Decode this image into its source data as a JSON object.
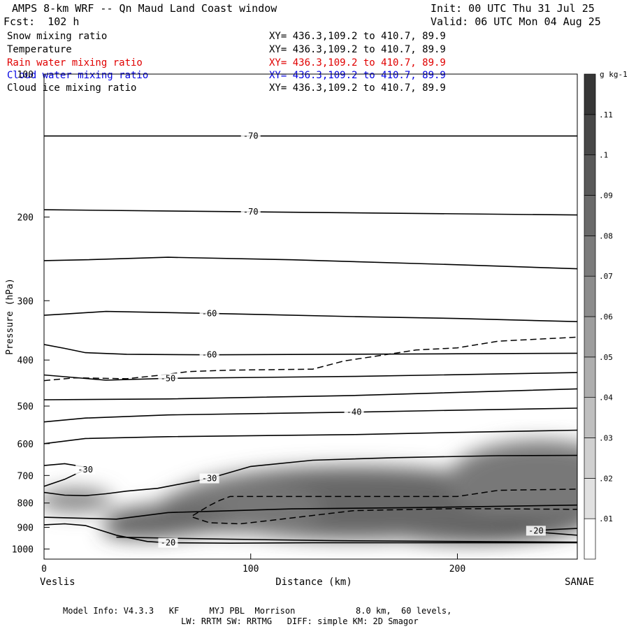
{
  "header": {
    "title": "AMPS 8-km WRF -- Qn Maud Land Coast window",
    "init": "Init: 00 UTC Thu 31 Jul 25",
    "forecast": "Fcst:  102 h",
    "valid": "Valid: 06 UTC Mon 04 Aug 25"
  },
  "fields": [
    {
      "name": "Snow mixing ratio",
      "xy": "XY= 436.3,109.2 to 410.7, 89.9",
      "color": "#000000"
    },
    {
      "name": "Temperature",
      "xy": "XY= 436.3,109.2 to 410.7, 89.9",
      "color": "#000000"
    },
    {
      "name": "Rain water mixing ratio",
      "xy": "XY= 436.3,109.2 to 410.7, 89.9",
      "color": "#e00000"
    },
    {
      "name": "Cloud water mixing ratio",
      "xy": "XY= 436.3,109.2 to 410.7, 89.9",
      "color": "#0000e0"
    },
    {
      "name": "Cloud ice mixing ratio",
      "xy": "XY= 436.3,109.2 to 410.7, 89.9",
      "color": "#000000"
    }
  ],
  "chart_data": {
    "type": "heatmap",
    "ylabel": "Pressure (hPa)",
    "xlabel": "Distance (km)",
    "xlim": [
      0,
      258
    ],
    "ylim": [
      1050,
      100
    ],
    "yscale": "log",
    "x_ticks": [
      0,
      100,
      200
    ],
    "y_ticks": [
      100,
      200,
      300,
      400,
      500,
      600,
      700,
      800,
      900,
      1000
    ],
    "x_endpoints": {
      "left": "Veslis",
      "right": "SANAE"
    },
    "colorbar": {
      "unit": "g kg-1",
      "labels": [
        ".01",
        ".02",
        ".03",
        ".04",
        ".05",
        ".06",
        ".07",
        ".08",
        ".09",
        ".1",
        ".11"
      ],
      "range": [
        0.005,
        0.12
      ]
    },
    "temperature_contours": [
      {
        "label": "-70",
        "points": [
          [
            0,
            135
          ],
          [
            100,
            135
          ],
          [
            258,
            135
          ]
        ]
      },
      {
        "label": "-70",
        "points": [
          [
            0,
            193
          ],
          [
            100,
            195
          ],
          [
            258,
            198
          ]
        ]
      },
      {
        "label": "",
        "points": [
          [
            0,
            247
          ],
          [
            20,
            246
          ],
          [
            60,
            243
          ],
          [
            120,
            246
          ],
          [
            200,
            252
          ],
          [
            258,
            257
          ]
        ]
      },
      {
        "label": "-60",
        "points": [
          [
            0,
            322
          ],
          [
            10,
            320
          ],
          [
            30,
            316
          ],
          [
            80,
            319
          ],
          [
            150,
            324
          ],
          [
            200,
            327
          ],
          [
            258,
            332
          ]
        ]
      },
      {
        "label": "-60",
        "points": [
          [
            0,
            371
          ],
          [
            10,
            378
          ],
          [
            20,
            386
          ],
          [
            40,
            389
          ],
          [
            80,
            390
          ],
          [
            140,
            389
          ],
          [
            200,
            388
          ],
          [
            258,
            387
          ]
        ]
      },
      {
        "label": "-50",
        "points": [
          [
            0,
            430
          ],
          [
            30,
            441
          ],
          [
            60,
            437
          ],
          [
            150,
            433
          ],
          [
            258,
            425
          ]
        ]
      },
      {
        "label": "",
        "points": [
          [
            0,
            485
          ],
          [
            60,
            483
          ],
          [
            150,
            475
          ],
          [
            258,
            460
          ]
        ]
      },
      {
        "label": "-40",
        "points": [
          [
            0,
            540
          ],
          [
            20,
            530
          ],
          [
            60,
            522
          ],
          [
            150,
            515
          ],
          [
            200,
            510
          ],
          [
            258,
            505
          ]
        ]
      },
      {
        "label": "",
        "points": [
          [
            0,
            600
          ],
          [
            20,
            585
          ],
          [
            60,
            580
          ],
          [
            150,
            574
          ],
          [
            200,
            568
          ],
          [
            258,
            562
          ]
        ]
      },
      {
        "label": "-30",
        "points": [
          [
            0,
            760
          ],
          [
            10,
            770
          ],
          [
            20,
            772
          ],
          [
            30,
            765
          ],
          [
            40,
            755
          ],
          [
            55,
            745
          ],
          [
            80,
            710
          ],
          [
            100,
            670
          ],
          [
            130,
            650
          ],
          [
            170,
            642
          ],
          [
            220,
            636
          ],
          [
            258,
            635
          ]
        ]
      },
      {
        "label": "-30",
        "points": [
          [
            0,
            667
          ],
          [
            10,
            661
          ],
          [
            20,
            672
          ],
          [
            20,
            680
          ],
          [
            10,
            713
          ],
          [
            0,
            738
          ]
        ]
      },
      {
        "label": "",
        "points": [
          [
            0,
            857
          ],
          [
            35,
            865
          ],
          [
            60,
            838
          ],
          [
            80,
            833
          ],
          [
            120,
            823
          ],
          [
            180,
            818
          ],
          [
            258,
            808
          ]
        ]
      },
      {
        "label": "-20",
        "points": [
          [
            0,
            889
          ],
          [
            10,
            885
          ],
          [
            20,
            892
          ],
          [
            35,
            935
          ],
          [
            50,
            964
          ],
          [
            60,
            970
          ],
          [
            90,
            972
          ],
          [
            130,
            970
          ],
          [
            190,
            970
          ],
          [
            258,
            970
          ]
        ]
      },
      {
        "label": "",
        "points": [
          [
            35,
            944
          ],
          [
            80,
            952
          ],
          [
            140,
            960
          ],
          [
            258,
            967
          ]
        ]
      },
      {
        "label": "-20",
        "points": [
          [
            258,
            905
          ],
          [
            245,
            910
          ],
          [
            238,
            915
          ],
          [
            238,
            921
          ],
          [
            258,
            935
          ]
        ]
      }
    ],
    "rain_water_contours": [
      {
        "label": "",
        "points": [
          [
            0,
            442
          ],
          [
            15,
            436
          ],
          [
            40,
            438
          ],
          [
            55,
            431
          ],
          [
            70,
            423
          ],
          [
            90,
            420
          ],
          [
            130,
            418
          ],
          [
            145,
            402
          ],
          [
            180,
            381
          ],
          [
            200,
            377
          ],
          [
            220,
            365
          ],
          [
            258,
            358
          ]
        ]
      },
      {
        "label": "",
        "points": [
          [
            72,
            850
          ],
          [
            80,
            810
          ],
          [
            85,
            790
          ],
          [
            90,
            775
          ],
          [
            130,
            775
          ],
          [
            200,
            775
          ],
          [
            220,
            752
          ],
          [
            258,
            748
          ]
        ]
      },
      {
        "label": "",
        "points": [
          [
            72,
            857
          ],
          [
            80,
            880
          ],
          [
            95,
            885
          ],
          [
            110,
            870
          ],
          [
            150,
            830
          ],
          [
            200,
            822
          ],
          [
            258,
            825
          ]
        ]
      }
    ],
    "snow_blobs": [
      {
        "x": 50,
        "p": 915,
        "value": 0.11,
        "rx": 22,
        "rp": 70
      },
      {
        "x": 205,
        "p": 860,
        "value": 0.11,
        "rx": 60,
        "rp": 190
      },
      {
        "x": 150,
        "p": 800,
        "value": 0.09,
        "rx": 90,
        "rp": 260
      },
      {
        "x": 240,
        "p": 720,
        "value": 0.08,
        "rx": 45,
        "rp": 260
      },
      {
        "x": 95,
        "p": 820,
        "value": 0.08,
        "rx": 40,
        "rp": 190
      },
      {
        "x": 15,
        "p": 790,
        "value": 0.07,
        "rx": 18,
        "rp": 90
      },
      {
        "x": 60,
        "p": 870,
        "value": 0.09,
        "rx": 30,
        "rp": 130
      }
    ]
  },
  "footer": {
    "line1": "Model Info: V4.3.3   KF      MYJ PBL  Morrison            8.0 km,  60 levels,",
    "line2": "LW: RRTM SW: RRTMG   DIFF: simple KM: 2D Smagor"
  }
}
